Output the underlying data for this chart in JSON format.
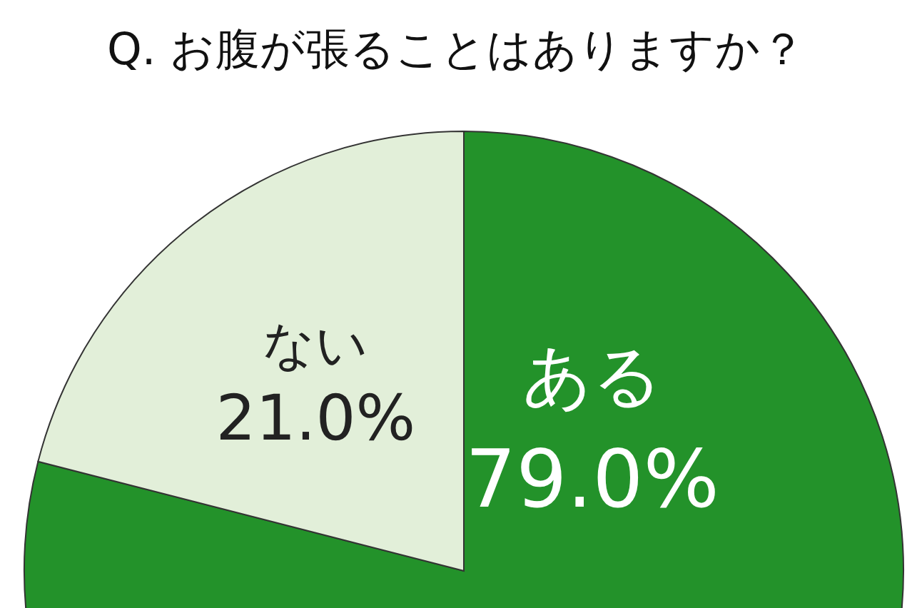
{
  "chart_data": {
    "type": "pie",
    "title": "Q. お腹が張ることはありますか？",
    "categories": [
      "ある",
      "ない"
    ],
    "values": [
      79.0,
      21.0
    ],
    "value_labels": [
      "79.0%",
      "21.0%"
    ],
    "colors": [
      "#23922a",
      "#e2efd9"
    ]
  }
}
